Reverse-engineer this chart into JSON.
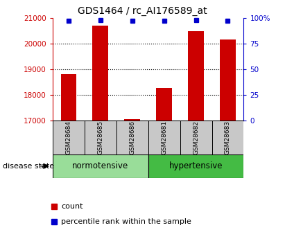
{
  "title": "GDS1464 / rc_AI176589_at",
  "samples": [
    "GSM28684",
    "GSM28685",
    "GSM28686",
    "GSM28681",
    "GSM28682",
    "GSM28683"
  ],
  "counts": [
    18820,
    20700,
    17055,
    18280,
    20480,
    20160
  ],
  "percentiles": [
    97,
    98,
    97,
    97,
    98,
    97
  ],
  "groups": [
    {
      "label": "normotensive",
      "start": 0,
      "end": 3,
      "color": "#99dd99"
    },
    {
      "label": "hypertensive",
      "start": 3,
      "end": 6,
      "color": "#44bb44"
    }
  ],
  "ylim_left": [
    17000,
    21000
  ],
  "ylim_right": [
    0,
    100
  ],
  "yticks_left": [
    17000,
    18000,
    19000,
    20000,
    21000
  ],
  "yticks_right": [
    0,
    25,
    50,
    75,
    100
  ],
  "bar_color": "#cc0000",
  "percentile_color": "#0000cc",
  "bar_width": 0.5,
  "disease_label": "disease state",
  "legend_count_label": "count",
  "legend_percentile_label": "percentile rank within the sample",
  "title_fontsize": 10,
  "tick_label_fontsize": 7.5,
  "sample_label_fontsize": 6.5,
  "group_label_fontsize": 8.5
}
